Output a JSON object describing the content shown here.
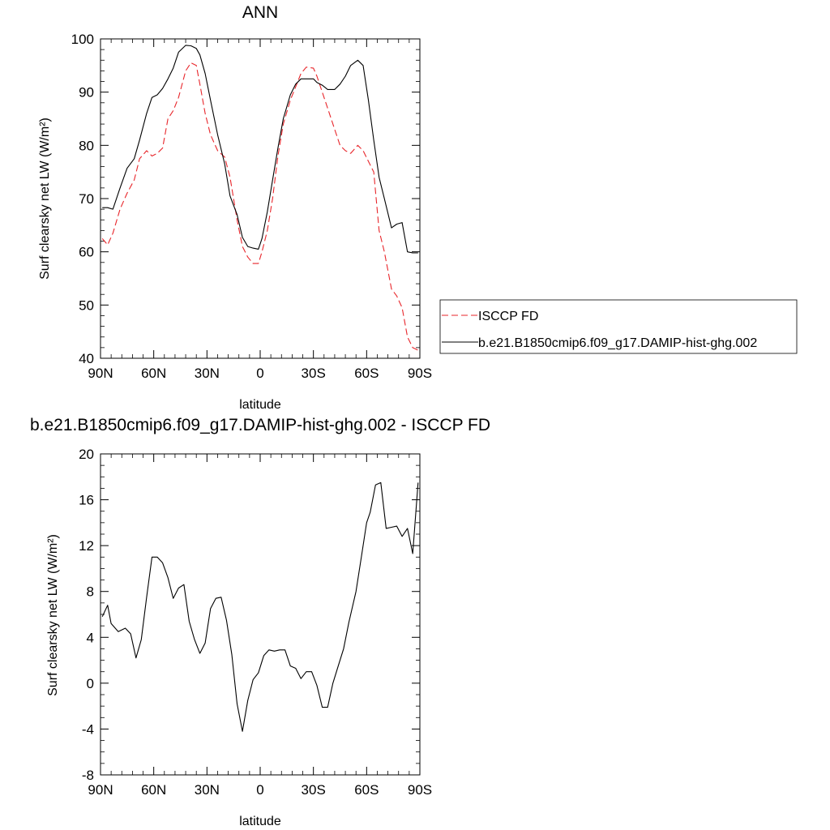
{
  "chart_data": [
    {
      "type": "line",
      "title": "ANN",
      "xlabel": "latitude",
      "ylabel": "Surf clearsky net LW (W/m²)",
      "xlim": [
        90,
        -90
      ],
      "ylim": [
        40,
        100
      ],
      "x_ticks": [
        90,
        60,
        30,
        0,
        -30,
        -60,
        -90
      ],
      "x_tick_labels": [
        "90N",
        "60N",
        "30N",
        "0",
        "30S",
        "60S",
        "90S"
      ],
      "y_ticks": [
        40,
        50,
        60,
        70,
        80,
        90,
        100
      ],
      "y_tick_labels": [
        "40",
        "50",
        "60",
        "70",
        "80",
        "90",
        "100"
      ],
      "grid": false,
      "legend": {
        "placement": "right",
        "entries": [
          "ISCCP FD",
          "b.e21.B1850cmip6.f09_g17.DAMIP-hist-ghg.002"
        ]
      },
      "series": [
        {
          "name": "ISCCP FD",
          "color": "#e8262b",
          "dash": "dashed",
          "x": [
            89,
            86,
            83,
            79,
            75,
            71,
            68,
            64,
            61,
            58,
            55,
            52,
            49,
            46,
            42,
            39,
            36,
            34,
            31,
            28,
            24,
            20,
            17,
            13,
            10,
            7,
            4,
            1,
            -1,
            -4,
            -7,
            -10,
            -13,
            -17,
            -20,
            -23,
            -26,
            -30,
            -32,
            -35,
            -38,
            -42,
            -45,
            -48,
            -51,
            -55,
            -58,
            -61,
            -64,
            -67,
            -70,
            -74,
            -77,
            -80,
            -83,
            -86,
            -89
          ],
          "y": [
            62.5,
            61.3,
            63.5,
            68,
            71,
            73.5,
            77.5,
            79,
            78,
            78.5,
            79.5,
            85,
            86.5,
            89,
            94,
            95.5,
            95,
            91.5,
            86,
            82,
            79,
            77.8,
            74,
            66,
            61,
            59,
            57.8,
            57.8,
            60,
            64,
            70,
            78,
            84,
            88.5,
            91,
            93.5,
            94.7,
            94.5,
            93,
            90,
            87,
            83,
            80,
            79,
            78.5,
            80,
            79,
            77,
            75,
            64,
            60,
            53,
            51.7,
            49.5,
            44,
            42,
            41.5
          ]
        },
        {
          "name": "b.e21.B1850cmip6.f09_g17.DAMIP-hist-ghg.002",
          "color": "#000000",
          "dash": "solid",
          "x": [
            89,
            86,
            83,
            79,
            75,
            71,
            68,
            64,
            61,
            58,
            55,
            52,
            49,
            46,
            42,
            39,
            36,
            34,
            31,
            28,
            24,
            20,
            17,
            13,
            10,
            7,
            4,
            1,
            -1,
            -4,
            -7,
            -10,
            -13,
            -17,
            -20,
            -23,
            -26,
            -30,
            -32,
            -35,
            -38,
            -42,
            -45,
            -48,
            -51,
            -55,
            -58,
            -61,
            -64,
            -67,
            -70,
            -74,
            -77,
            -80,
            -83,
            -86,
            -89
          ],
          "y": [
            68.3,
            68.3,
            68,
            72,
            75.7,
            77.5,
            81,
            86,
            89,
            89.5,
            90.7,
            92.5,
            94.5,
            97.5,
            98.8,
            98.7,
            98.2,
            97,
            93.5,
            88.5,
            82,
            76.5,
            70.5,
            67,
            62.7,
            61,
            60.7,
            60.5,
            62.5,
            67.5,
            73.5,
            79.5,
            85,
            89.5,
            91.5,
            92.5,
            92.5,
            92.5,
            91.8,
            91.3,
            90.5,
            90.5,
            91.5,
            93,
            95,
            96,
            95,
            88.5,
            81,
            74,
            70,
            64.5,
            65.2,
            65.5,
            60,
            59.8,
            59.8
          ]
        }
      ]
    },
    {
      "type": "line",
      "title": "b.e21.B1850cmip6.f09_g17.DAMIP-hist-ghg.002 - ISCCP FD",
      "xlabel": "latitude",
      "ylabel": "Surf clearsky net LW (W/m²)",
      "xlim": [
        90,
        -90
      ],
      "ylim": [
        -8,
        20
      ],
      "x_ticks": [
        90,
        60,
        30,
        0,
        -30,
        -60,
        -90
      ],
      "x_tick_labels": [
        "90N",
        "60N",
        "30N",
        "0",
        "30S",
        "60S",
        "90S"
      ],
      "y_ticks": [
        -8,
        -4,
        0,
        4,
        8,
        12,
        16,
        20
      ],
      "y_tick_labels": [
        "-8",
        "-4",
        "0",
        "4",
        "8",
        "12",
        "16",
        "20"
      ],
      "grid": false,
      "series": [
        {
          "color": "#000000",
          "dash": "solid",
          "x": [
            89,
            86,
            84,
            80,
            76,
            73,
            70,
            67,
            64,
            61,
            58,
            55,
            52,
            49,
            46,
            43,
            40,
            37,
            34,
            31,
            28,
            25,
            22,
            19,
            16,
            13,
            10,
            7,
            4,
            1,
            -2,
            -5,
            -8,
            -11,
            -14,
            -17,
            -20,
            -23,
            -26,
            -29,
            -32,
            -35,
            -38,
            -41,
            -44,
            -47,
            -50,
            -54,
            -57,
            -60,
            -62,
            -65,
            -68,
            -71,
            -74,
            -77,
            -80,
            -83,
            -86,
            -89
          ],
          "y": [
            5.8,
            6.8,
            5.2,
            4.5,
            4.8,
            4.3,
            2.2,
            3.8,
            7.5,
            11,
            11,
            10.5,
            9.2,
            7.4,
            8.3,
            8.6,
            5.4,
            3.8,
            2.6,
            3.5,
            6.5,
            7.4,
            7.5,
            5.5,
            2.5,
            -1.8,
            -4.2,
            -1.5,
            0.3,
            0.9,
            2.4,
            2.9,
            2.8,
            2.9,
            2.9,
            1.5,
            1.3,
            0.4,
            1,
            1,
            -0.2,
            -2.1,
            -2.1,
            0,
            1.5,
            3,
            5.3,
            8,
            11,
            14,
            14.9,
            17.3,
            17.5,
            13.5,
            13.6,
            13.7,
            12.8,
            13.5,
            11.3,
            17.5
          ]
        }
      ]
    }
  ]
}
